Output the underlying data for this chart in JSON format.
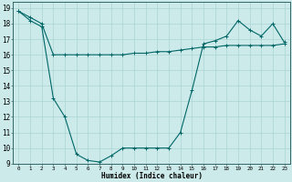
{
  "xlabel": "Humidex (Indice chaleur)",
  "ylabel": "",
  "background_color": "#cceaea",
  "grid_color": "#aad4d4",
  "line_color": "#006666",
  "xlim": [
    -0.5,
    23.5
  ],
  "ylim": [
    9,
    19.4
  ],
  "xticks": [
    0,
    1,
    2,
    3,
    4,
    5,
    6,
    7,
    8,
    9,
    10,
    11,
    12,
    13,
    14,
    15,
    16,
    17,
    18,
    19,
    20,
    21,
    22,
    23
  ],
  "yticks": [
    9,
    10,
    11,
    12,
    13,
    14,
    15,
    16,
    17,
    18,
    19
  ],
  "series1_x": [
    0,
    1,
    2,
    3,
    4,
    5,
    6,
    7,
    8,
    9,
    10,
    11,
    12,
    13,
    14,
    15,
    16,
    17,
    18,
    19,
    20,
    21,
    22,
    23
  ],
  "series1_y": [
    18.8,
    18.4,
    18.0,
    16.0,
    16.0,
    16.0,
    16.0,
    16.0,
    16.0,
    16.0,
    16.1,
    16.1,
    16.2,
    16.2,
    16.3,
    16.4,
    16.5,
    16.5,
    16.6,
    16.6,
    16.6,
    16.6,
    16.6,
    16.7
  ],
  "series2_x": [
    0,
    1,
    2,
    3,
    4,
    5,
    6,
    7,
    8,
    9,
    10,
    11,
    12,
    13,
    14,
    15,
    16,
    17,
    18,
    19,
    20,
    21,
    22,
    23
  ],
  "series2_y": [
    18.8,
    18.2,
    17.8,
    13.2,
    12.0,
    9.6,
    9.2,
    9.1,
    9.5,
    10.0,
    10.0,
    10.0,
    10.0,
    10.0,
    11.0,
    13.7,
    16.7,
    16.9,
    17.2,
    18.2,
    17.6,
    17.2,
    18.0,
    16.8
  ]
}
